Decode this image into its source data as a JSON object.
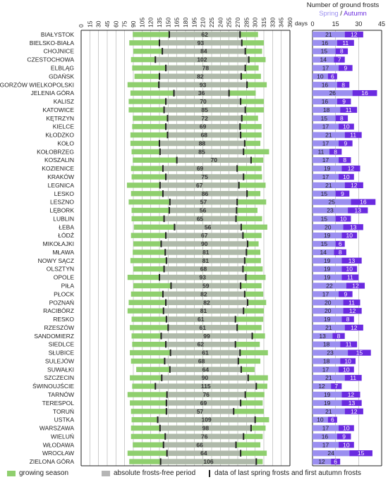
{
  "frost_chart_title": "Number of ground frosts",
  "frost_legend_spring": "Spring",
  "frost_legend_sep": "/",
  "frost_legend_autumn": "Autumn",
  "days_label": "days",
  "legend": {
    "growing": "growing season",
    "frostfree": "absolute frosts-free period",
    "ticks": "data of last spring frosts and first autumn frosts"
  },
  "colors": {
    "growing": "#8fcf6e",
    "frostfree": "#b5b5b5",
    "spring": "#9b8ff0",
    "autumn": "#6a2ae0"
  },
  "chart_data": [
    {
      "type": "bar",
      "chart_kind": "gantt-range",
      "x_unit": "days",
      "xlim": [
        0,
        360
      ],
      "xticks": [
        0,
        15,
        30,
        45,
        60,
        75,
        90,
        105,
        120,
        135,
        150,
        165,
        180,
        195,
        210,
        225,
        240,
        255,
        270,
        285,
        300,
        315,
        330,
        345,
        360
      ],
      "categories": [
        "BIAŁYSTOK",
        "BIELSKO-BIAŁA",
        "CHOJNICE",
        "CZESTOCHOWA",
        "ELBLĄG",
        "GDAŃSK",
        "GORZÓW WIELKOPOLSKI",
        "JELENIA GÓRA",
        "KALISZ",
        "KATOWICE",
        "KĘTRZYN",
        "KIELCE",
        "KŁODZKO",
        "KOŁO",
        "KOŁOBRZEG",
        "KOSZALIN",
        "KOZIENICE",
        "KRAKÓW",
        "LEGNICA",
        "LESKO",
        "LESZNO",
        "LĘBORK",
        "LUBLIN",
        "ŁEBA",
        "ŁÓDŹ",
        "MIKOŁAJKI",
        "MŁAWA",
        "NOWY SĄCZ",
        "OLSZTYN",
        "OPOLE",
        "PIŁA",
        "PŁOCK",
        "POZNAŃ",
        "RACIBÓRZ",
        "RESKO",
        "RZESZÓW",
        "SANDOMIERZ",
        "SIEDLCE",
        "SŁUBICE",
        "SULEJÓW",
        "SUWAŁKI",
        "SZCZECIN",
        "ŚWINOUJŚCIE",
        "TARNÓW",
        "TERESPOL",
        "TORUŃ",
        "USTKA",
        "WARSZAWA",
        "WIELUŃ",
        "WŁODAWA",
        "WROCŁAW",
        "ZIELONA GÓRA"
      ],
      "growing_season_start": [
        89,
        83,
        90,
        86,
        88,
        92,
        80,
        85,
        82,
        82,
        89,
        88,
        85,
        85,
        87,
        89,
        86,
        87,
        79,
        86,
        82,
        87,
        87,
        91,
        86,
        90,
        89,
        85,
        90,
        80,
        90,
        86,
        82,
        80,
        87,
        84,
        87,
        88,
        84,
        86,
        95,
        84,
        88,
        80,
        84,
        86,
        87,
        86,
        86,
        89,
        80,
        83
      ],
      "growing_season_end": [
        305,
        315,
        312,
        318,
        306,
        310,
        320,
        301,
        315,
        315,
        305,
        311,
        311,
        309,
        324,
        314,
        311,
        312,
        318,
        309,
        319,
        304,
        312,
        321,
        311,
        306,
        309,
        310,
        313,
        318,
        311,
        314,
        319,
        315,
        314,
        311,
        317,
        308,
        322,
        309,
        299,
        322,
        321,
        316,
        313,
        315,
        324,
        318,
        313,
        309,
        320,
        313
      ],
      "frost_free_start": [
        152,
        135,
        140,
        128,
        146,
        135,
        134,
        160,
        146,
        143,
        149,
        146,
        149,
        135,
        136,
        165,
        141,
        146,
        136,
        141,
        153,
        152,
        143,
        161,
        146,
        138,
        145,
        147,
        143,
        135,
        155,
        141,
        146,
        142,
        147,
        150,
        138,
        146,
        154,
        144,
        153,
        139,
        128,
        148,
        147,
        147,
        132,
        136,
        145,
        142,
        148,
        137
      ],
      "frost_free_end": [
        274,
        277,
        283,
        289,
        283,
        276,
        286,
        255,
        275,
        283,
        277,
        274,
        275,
        282,
        280,
        293,
        269,
        280,
        272,
        286,
        269,
        268,
        267,
        276,
        279,
        287,
        285,
        282,
        279,
        284,
        275,
        282,
        287,
        280,
        266,
        269,
        295,
        266,
        274,
        271,
        276,
        288,
        302,
        283,
        275,
        263,
        300,
        293,
        280,
        267,
        275,
        302
      ],
      "frost_free_days": [
        62,
        93,
        84,
        102,
        78,
        82,
        93,
        36,
        70,
        85,
        72,
        69,
        68,
        88,
        85,
        70,
        69,
        75,
        67,
        86,
        57,
        56,
        65,
        56,
        67,
        90,
        81,
        81,
        68,
        93,
        59,
        82,
        82,
        81,
        61,
        61,
        99,
        62,
        61,
        68,
        64,
        90,
        115,
        76,
        69,
        57,
        109,
        98,
        76,
        66,
        64,
        106
      ]
    },
    {
      "type": "bar",
      "chart_kind": "stacked-horizontal",
      "title": "Number of ground frosts",
      "xlim": [
        0,
        45
      ],
      "xticks": [
        0,
        15,
        30,
        45
      ],
      "categories": [
        "BIAŁYSTOK",
        "BIELSKO-BIAŁA",
        "CHOJNICE",
        "CZESTOCHOWA",
        "ELBLĄG",
        "GDAŃSK",
        "GORZÓW WIELKOPOLSKI",
        "JELENIA GÓRA",
        "KALISZ",
        "KATOWICE",
        "KĘTRZYN",
        "KIELCE",
        "KŁODZKO",
        "KOŁO",
        "KOŁOBRZEG",
        "KOSZALIN",
        "KOZIENICE",
        "KRAKÓW",
        "LEGNICA",
        "LESKO",
        "LESZNO",
        "LĘBORK",
        "LUBLIN",
        "ŁEBA",
        "ŁÓDŹ",
        "MIKOŁAJKI",
        "MŁAWA",
        "NOWY SĄCZ",
        "OLSZTYN",
        "OPOLE",
        "PIŁA",
        "PŁOCK",
        "POZNAŃ",
        "RACIBÓRZ",
        "RESKO",
        "RZESZÓW",
        "SANDOMIERZ",
        "SIEDLCE",
        "SŁUBICE",
        "SULEJÓW",
        "SUWAŁKI",
        "SZCZECIN",
        "ŚWINOUJŚCIE",
        "TARNÓW",
        "TERESPOL",
        "TORUŃ",
        "USTKA",
        "WARSZAWA",
        "WIELUŃ",
        "WŁODAWA",
        "WROCŁAW",
        "ZIELONA GÓRA"
      ],
      "series": [
        {
          "name": "Spring",
          "values": [
            21,
            16,
            15,
            14,
            17,
            10,
            16,
            26,
            16,
            18,
            15,
            17,
            21,
            17,
            11,
            17,
            19,
            17,
            21,
            15,
            25,
            23,
            15,
            20,
            19,
            15,
            14,
            19,
            19,
            19,
            22,
            17,
            20,
            20,
            19,
            21,
            13,
            18,
            23,
            18,
            17,
            21,
            12,
            19,
            19,
            21,
            10,
            17,
            16,
            17,
            24,
            12
          ]
        },
        {
          "name": "Autumn",
          "values": [
            12,
            11,
            8,
            7,
            9,
            6,
            8,
            16,
            9,
            11,
            8,
            10,
            11,
            9,
            8,
            8,
            12,
            10,
            12,
            9,
            16,
            13,
            10,
            13,
            10,
            6,
            8,
            13,
            10,
            11,
            12,
            9,
            11,
            12,
            8,
            12,
            8,
            11,
            15,
            10,
            10,
            11,
            7,
            12,
            13,
            12,
            6,
            10,
            9,
            10,
            15,
            6
          ]
        }
      ]
    }
  ]
}
